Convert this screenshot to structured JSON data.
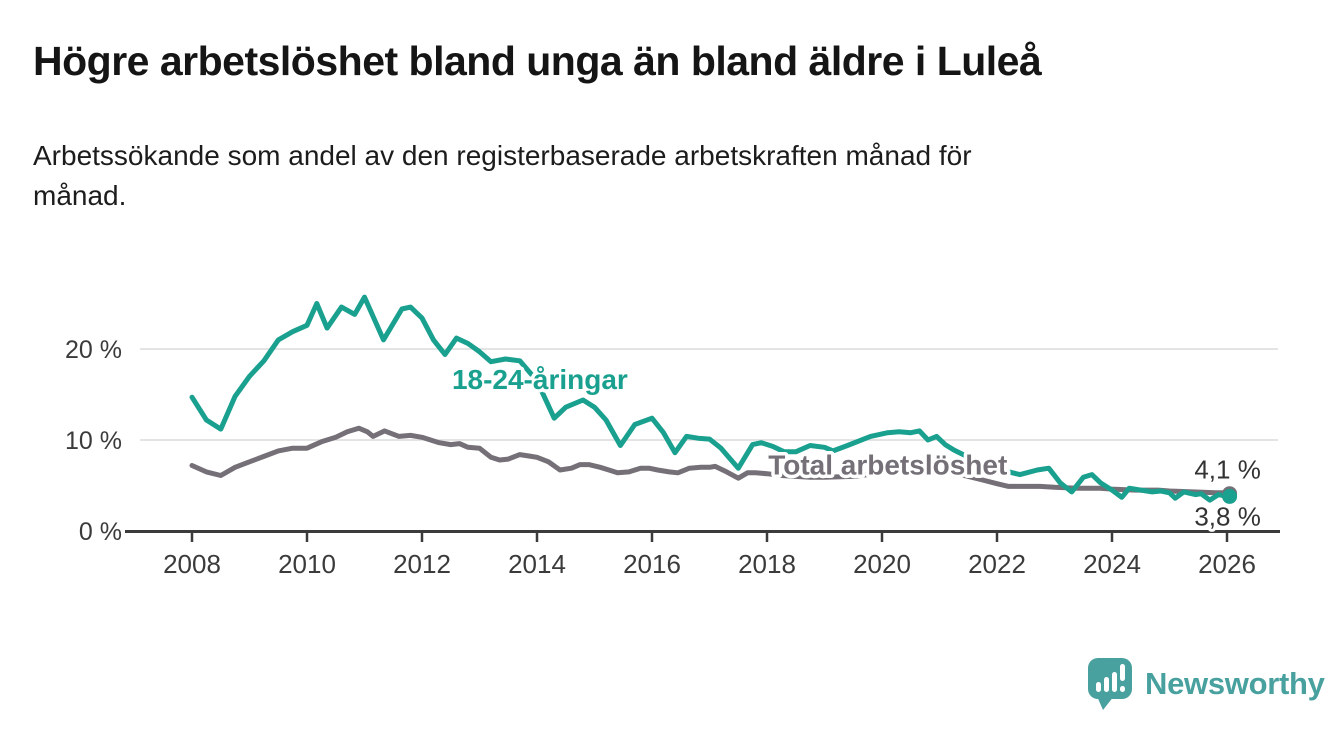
{
  "header": {
    "title": "Högre arbetslöshet bland unga än bland äldre i Luleå",
    "subtitle": "Arbetssökande som andel av den registerbaserade arbetskraften månad för\nmånad."
  },
  "chart_data": {
    "type": "line",
    "title": "Högre arbetslöshet bland unga än bland äldre i Luleå",
    "subtitle": "Arbetssökande som andel av den registerbaserade arbetskraften månad för månad.",
    "unit": "%",
    "x_axis": {
      "ticks": [
        2008,
        2010,
        2012,
        2014,
        2016,
        2018,
        2020,
        2022,
        2024,
        2026
      ],
      "range": [
        2007.1,
        2026.9
      ]
    },
    "y_axis": {
      "ticks": [
        {
          "value": 0,
          "label": "0 %"
        },
        {
          "value": 10,
          "label": "10 %"
        },
        {
          "value": 20,
          "label": "20 %"
        }
      ],
      "range": [
        0,
        27
      ],
      "grid": true
    },
    "colors": {
      "youth": "#1aa08f",
      "total": "#757077",
      "axis": "#3b3b3b",
      "grid": "#dcdcdc",
      "end_label": "#333333"
    },
    "series": [
      {
        "id": "total",
        "name": "Total arbetslöshet",
        "color": "#757077",
        "end_label": "4,1 %",
        "end_value": 4.1,
        "label_anchor": {
          "year": 2020.1,
          "pct": 7.3
        },
        "points": [
          [
            2008.0,
            7.2
          ],
          [
            2008.25,
            6.5
          ],
          [
            2008.5,
            6.1
          ],
          [
            2008.75,
            7.0
          ],
          [
            2009.0,
            7.6
          ],
          [
            2009.25,
            8.2
          ],
          [
            2009.5,
            8.8
          ],
          [
            2009.75,
            9.1
          ],
          [
            2010.0,
            9.1
          ],
          [
            2010.25,
            9.8
          ],
          [
            2010.5,
            10.3
          ],
          [
            2010.7,
            10.9
          ],
          [
            2010.9,
            11.3
          ],
          [
            2011.05,
            10.9
          ],
          [
            2011.15,
            10.4
          ],
          [
            2011.35,
            11.0
          ],
          [
            2011.6,
            10.4
          ],
          [
            2011.8,
            10.5
          ],
          [
            2012.0,
            10.3
          ],
          [
            2012.3,
            9.7
          ],
          [
            2012.5,
            9.5
          ],
          [
            2012.65,
            9.6
          ],
          [
            2012.8,
            9.2
          ],
          [
            2013.0,
            9.1
          ],
          [
            2013.2,
            8.1
          ],
          [
            2013.35,
            7.8
          ],
          [
            2013.5,
            7.9
          ],
          [
            2013.7,
            8.4
          ],
          [
            2013.9,
            8.2
          ],
          [
            2014.0,
            8.1
          ],
          [
            2014.2,
            7.6
          ],
          [
            2014.4,
            6.7
          ],
          [
            2014.6,
            6.9
          ],
          [
            2014.75,
            7.3
          ],
          [
            2014.9,
            7.3
          ],
          [
            2015.1,
            7.0
          ],
          [
            2015.25,
            6.7
          ],
          [
            2015.4,
            6.4
          ],
          [
            2015.6,
            6.5
          ],
          [
            2015.8,
            6.9
          ],
          [
            2015.95,
            6.9
          ],
          [
            2016.1,
            6.7
          ],
          [
            2016.3,
            6.5
          ],
          [
            2016.45,
            6.4
          ],
          [
            2016.65,
            6.9
          ],
          [
            2016.85,
            7.0
          ],
          [
            2017.0,
            7.0
          ],
          [
            2017.1,
            7.1
          ],
          [
            2017.3,
            6.5
          ],
          [
            2017.5,
            5.8
          ],
          [
            2017.66,
            6.4
          ],
          [
            2017.8,
            6.4
          ],
          [
            2018.0,
            6.3
          ],
          [
            2018.25,
            6.1
          ],
          [
            2018.5,
            6.0
          ],
          [
            2018.75,
            5.9
          ],
          [
            2019.0,
            5.9
          ],
          [
            2019.5,
            6.0
          ],
          [
            2019.75,
            6.2
          ],
          [
            2020.0,
            6.5
          ],
          [
            2020.3,
            7.0
          ],
          [
            2020.5,
            7.3
          ],
          [
            2020.75,
            7.1
          ],
          [
            2021.0,
            6.8
          ],
          [
            2021.25,
            6.4
          ],
          [
            2021.5,
            6.0
          ],
          [
            2021.75,
            5.6
          ],
          [
            2022.0,
            5.2
          ],
          [
            2022.2,
            4.9
          ],
          [
            2022.5,
            4.9
          ],
          [
            2022.75,
            4.9
          ],
          [
            2023.0,
            4.8
          ],
          [
            2023.4,
            4.7
          ],
          [
            2023.8,
            4.7
          ],
          [
            2024.0,
            4.6
          ],
          [
            2024.4,
            4.5
          ],
          [
            2024.8,
            4.5
          ],
          [
            2025.0,
            4.4
          ],
          [
            2025.4,
            4.3
          ],
          [
            2025.8,
            4.2
          ],
          [
            2026.0,
            4.2
          ],
          [
            2026.08,
            4.1
          ]
        ]
      },
      {
        "id": "youth",
        "name": "18-24-åringar",
        "color": "#1aa08f",
        "end_label": "3,8 %",
        "end_value": 3.8,
        "label_anchor": {
          "year": 2014.05,
          "pct": 16.7
        },
        "points": [
          [
            2008.0,
            14.7
          ],
          [
            2008.25,
            12.2
          ],
          [
            2008.5,
            11.2
          ],
          [
            2008.75,
            14.8
          ],
          [
            2009.0,
            17.0
          ],
          [
            2009.25,
            18.7
          ],
          [
            2009.5,
            21.0
          ],
          [
            2009.75,
            21.9
          ],
          [
            2010.0,
            22.6
          ],
          [
            2010.17,
            25.0
          ],
          [
            2010.35,
            22.3
          ],
          [
            2010.6,
            24.6
          ],
          [
            2010.83,
            23.8
          ],
          [
            2011.0,
            25.7
          ],
          [
            2011.33,
            21.0
          ],
          [
            2011.65,
            24.4
          ],
          [
            2011.8,
            24.6
          ],
          [
            2012.0,
            23.4
          ],
          [
            2012.2,
            21.0
          ],
          [
            2012.4,
            19.4
          ],
          [
            2012.6,
            21.2
          ],
          [
            2012.8,
            20.6
          ],
          [
            2013.0,
            19.7
          ],
          [
            2013.2,
            18.6
          ],
          [
            2013.45,
            18.9
          ],
          [
            2013.7,
            18.7
          ],
          [
            2014.0,
            16.5
          ],
          [
            2014.3,
            12.4
          ],
          [
            2014.5,
            13.6
          ],
          [
            2014.8,
            14.4
          ],
          [
            2015.0,
            13.6
          ],
          [
            2015.2,
            12.2
          ],
          [
            2015.45,
            9.4
          ],
          [
            2015.7,
            11.7
          ],
          [
            2016.0,
            12.4
          ],
          [
            2016.2,
            10.8
          ],
          [
            2016.4,
            8.6
          ],
          [
            2016.6,
            10.4
          ],
          [
            2016.8,
            10.2
          ],
          [
            2017.0,
            10.1
          ],
          [
            2017.2,
            9.1
          ],
          [
            2017.5,
            6.9
          ],
          [
            2017.75,
            9.5
          ],
          [
            2017.9,
            9.7
          ],
          [
            2018.1,
            9.3
          ],
          [
            2018.3,
            8.7
          ],
          [
            2018.5,
            8.7
          ],
          [
            2018.75,
            9.4
          ],
          [
            2019.0,
            9.2
          ],
          [
            2019.15,
            8.8
          ],
          [
            2019.4,
            9.4
          ],
          [
            2019.8,
            10.4
          ],
          [
            2020.1,
            10.8
          ],
          [
            2020.3,
            10.9
          ],
          [
            2020.5,
            10.8
          ],
          [
            2020.65,
            11.0
          ],
          [
            2020.8,
            10.0
          ],
          [
            2020.95,
            10.4
          ],
          [
            2021.1,
            9.5
          ],
          [
            2021.25,
            8.9
          ],
          [
            2021.6,
            7.8
          ],
          [
            2022.0,
            6.8
          ],
          [
            2022.4,
            6.2
          ],
          [
            2022.7,
            6.7
          ],
          [
            2022.9,
            6.9
          ],
          [
            2023.1,
            5.3
          ],
          [
            2023.3,
            4.3
          ],
          [
            2023.5,
            5.9
          ],
          [
            2023.65,
            6.2
          ],
          [
            2023.8,
            5.3
          ],
          [
            2024.0,
            4.5
          ],
          [
            2024.17,
            3.7
          ],
          [
            2024.3,
            4.7
          ],
          [
            2024.5,
            4.5
          ],
          [
            2024.7,
            4.3
          ],
          [
            2024.85,
            4.4
          ],
          [
            2025.0,
            4.2
          ],
          [
            2025.1,
            3.6
          ],
          [
            2025.25,
            4.3
          ],
          [
            2025.45,
            4.0
          ],
          [
            2025.55,
            4.1
          ],
          [
            2025.7,
            3.4
          ],
          [
            2025.85,
            4.0
          ],
          [
            2026.0,
            3.8
          ],
          [
            2026.08,
            3.8
          ]
        ]
      }
    ],
    "legend_position": "inline-labels"
  },
  "branding": {
    "logo_text": "Newsworthy",
    "logo_color": "#48a19e"
  }
}
